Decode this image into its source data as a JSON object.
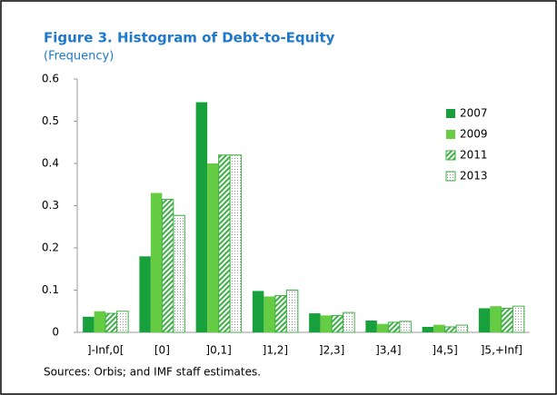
{
  "chart_data": {
    "type": "bar",
    "title": "Figure 3. Histogram of Debt-to-Equity",
    "subtitle": "(Frequency)",
    "note": "Sources: Orbis; and IMF staff estimates.",
    "categories": [
      "]-Inf,0[",
      "[0]",
      "]0,1]",
      "]1,2]",
      "]2,3]",
      "]3,4]",
      "]4,5]",
      "]5,+Inf]"
    ],
    "series": [
      {
        "name": "2007",
        "color": "#17a03c",
        "fill": "solid",
        "values": [
          0.037,
          0.18,
          0.545,
          0.098,
          0.045,
          0.028,
          0.013,
          0.057
        ]
      },
      {
        "name": "2009",
        "color": "#66cc44",
        "fill": "solid",
        "values": [
          0.05,
          0.33,
          0.4,
          0.085,
          0.04,
          0.02,
          0.018,
          0.062
        ]
      },
      {
        "name": "2011",
        "color": "#3cb043",
        "fill": "hatch",
        "values": [
          0.045,
          0.315,
          0.42,
          0.087,
          0.04,
          0.024,
          0.013,
          0.057
        ]
      },
      {
        "name": "2013",
        "color": "#3cb043",
        "fill": "dots",
        "values": [
          0.05,
          0.277,
          0.42,
          0.1,
          0.047,
          0.026,
          0.017,
          0.062
        ]
      }
    ],
    "ylim": [
      0,
      0.6
    ],
    "yticks": [
      0,
      0.1,
      0.2,
      0.3,
      0.4,
      0.5,
      0.6
    ],
    "grid": false,
    "legend": "top-right"
  }
}
